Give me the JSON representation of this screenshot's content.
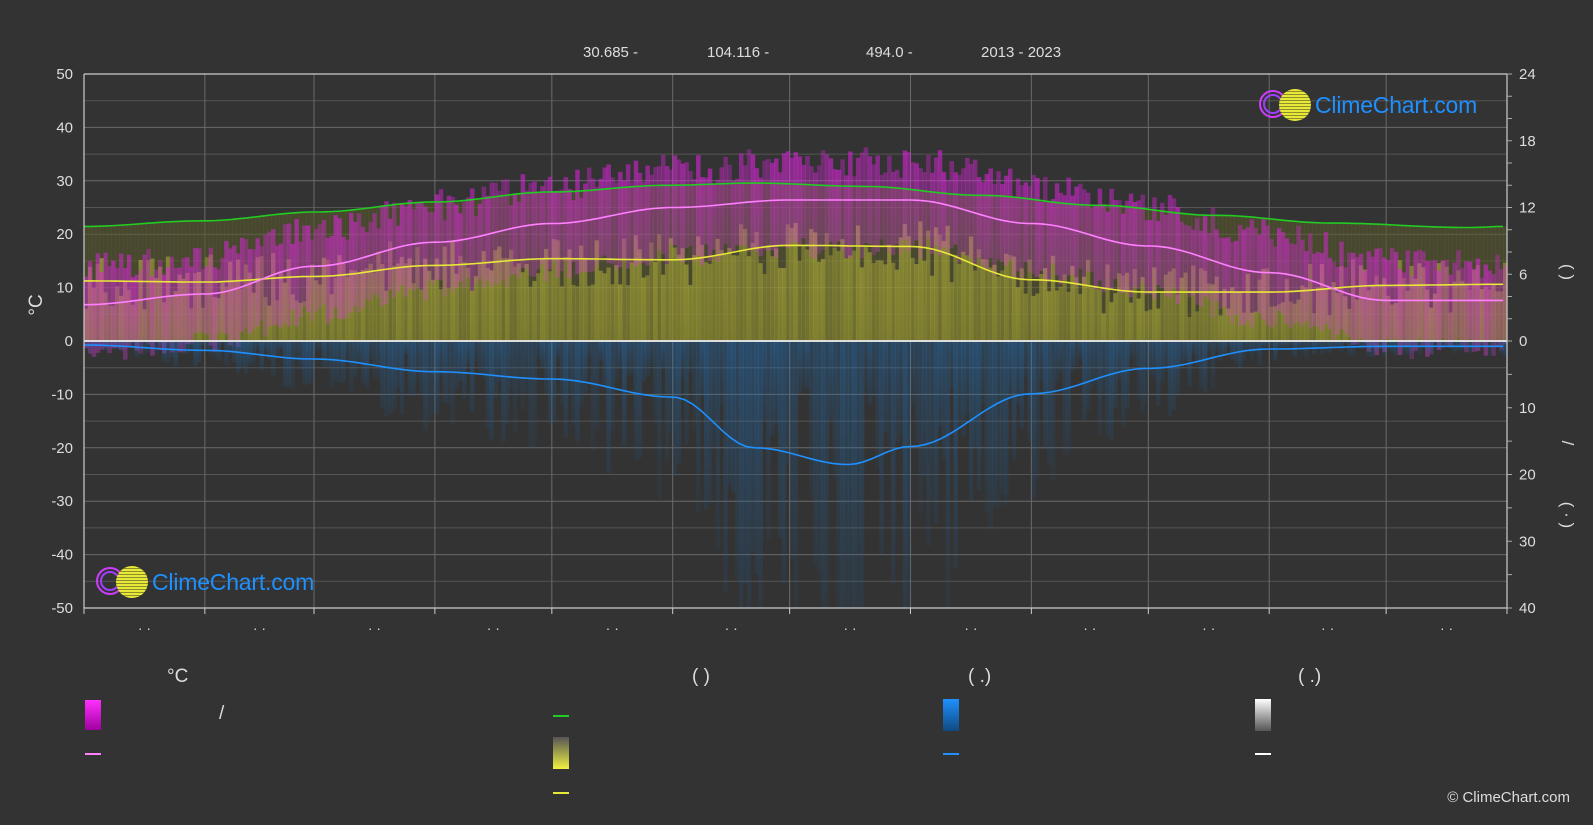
{
  "header": {
    "latitude": "30.685 -",
    "longitude": "104.116 -",
    "elevation": "494.0 -",
    "years": "2013 - 2023"
  },
  "brand": {
    "logo_text": "ClimeChart.com",
    "copyright": "© ClimeChart.com"
  },
  "legend": {
    "col1_heading": "°C",
    "col2_heading": "(          )",
    "col3_heading": "(   .)",
    "col4_heading": "(   .)",
    "col1_item1_text": "/"
  },
  "colors": {
    "background": "#333333",
    "temp_range": "#e020e0",
    "mean_temp": "#ff80ff",
    "daylight": "#22cc22",
    "sunshine": "#e8e838",
    "precipitation": "#1e90ff",
    "snow": "#ffffff"
  },
  "chart_data": {
    "type": "line",
    "month_tick_labels": [
      "· ·",
      "· ·",
      "· ·",
      "· ·",
      "· ·",
      "· ·",
      "· ·",
      "· ·",
      "· ·",
      "· ·",
      "· ·",
      "· ·"
    ],
    "ylabel_left": "°C",
    "ylim_left": [
      -50,
      50
    ],
    "ylim_right_top": [
      0,
      24
    ],
    "ylim_right_bottom": [
      0,
      40
    ],
    "left_ticks": [
      "50",
      "40",
      "30",
      "20",
      "10",
      "0",
      "-10",
      "-20",
      "-30",
      "-40",
      "-50"
    ],
    "right_top_ticks": [
      "24",
      "18",
      "12",
      "6",
      "0"
    ],
    "right_bottom_ticks": [
      "10",
      "20",
      "30",
      "40"
    ],
    "right_axis_labels": [
      "(      )",
      "/",
      "(  ·   )"
    ],
    "grid": true,
    "x_day": [
      0,
      31,
      59,
      90,
      120,
      151,
      181,
      212,
      243,
      273,
      304,
      334,
      365
    ],
    "series": [
      {
        "key": "daylight",
        "x": [
          0,
          30,
          60,
          90,
          120,
          150,
          172,
          200,
          230,
          260,
          290,
          320,
          355,
          365
        ],
        "values": [
          10.3,
          10.8,
          11.6,
          12.5,
          13.4,
          14.0,
          14.2,
          13.9,
          13.1,
          12.2,
          11.3,
          10.6,
          10.2,
          10.3
        ]
      },
      {
        "key": "sunshine",
        "x": [
          0,
          31,
          59,
          90,
          120,
          151,
          181,
          212,
          243,
          273,
          304,
          334,
          365
        ],
        "values": [
          5.4,
          5.3,
          5.8,
          6.8,
          7.4,
          7.3,
          8.6,
          8.5,
          5.5,
          4.4,
          4.4,
          5.0,
          5.1
        ]
      },
      {
        "key": "mean_temp",
        "x": [
          0,
          31,
          59,
          90,
          120,
          151,
          181,
          212,
          243,
          273,
          304,
          334,
          365
        ],
        "values": [
          6.8,
          8.8,
          14.0,
          18.5,
          22.0,
          25.0,
          26.4,
          26.4,
          22.0,
          17.8,
          12.8,
          7.6,
          7.6
        ]
      },
      {
        "key": "precipitation",
        "x": [
          0,
          31,
          59,
          90,
          120,
          151,
          172,
          196,
          212,
          243,
          273,
          304,
          334,
          365
        ],
        "values": [
          0.6,
          1.4,
          2.7,
          4.6,
          5.7,
          8.4,
          16.0,
          18.5,
          15.8,
          7.9,
          4.1,
          1.2,
          0.8,
          0.8
        ]
      }
    ]
  }
}
